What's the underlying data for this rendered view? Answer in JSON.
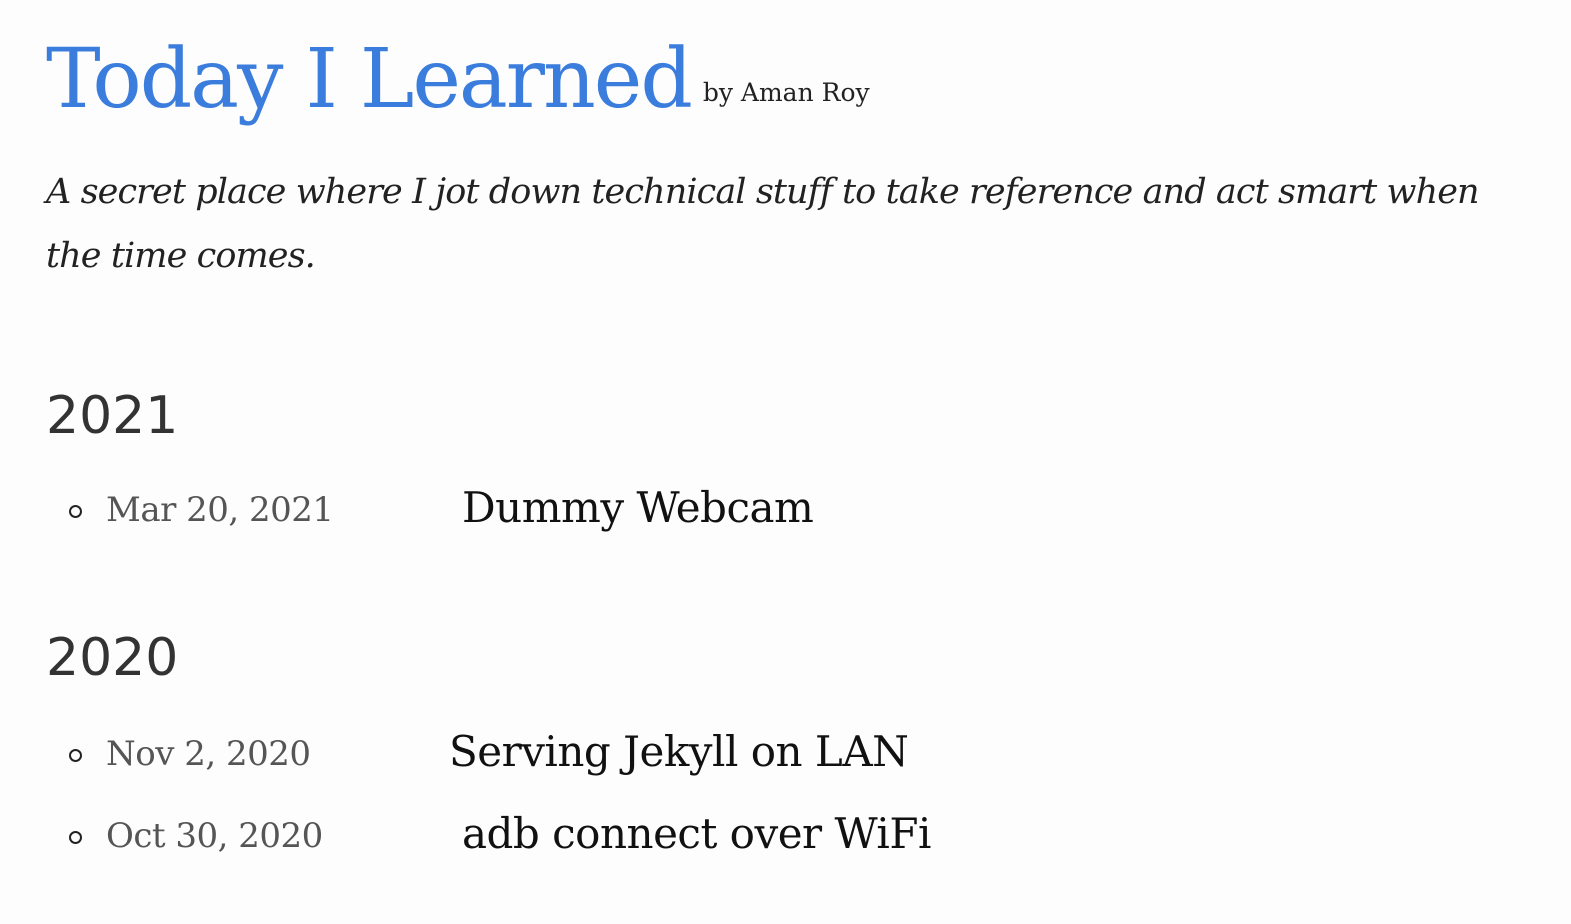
{
  "header": {
    "title": "Today I Learned",
    "byline": "by Aman Roy",
    "tagline": "A secret place where I jot down technical stuff to take reference and act smart when the time comes."
  },
  "archive": [
    {
      "year": "2021",
      "posts": [
        {
          "date": "Mar 20, 2021",
          "title": "Dummy Webcam"
        }
      ]
    },
    {
      "year": "2020",
      "posts": [
        {
          "date": "Nov 2, 2020",
          "title": "Serving Jekyll on LAN"
        },
        {
          "date": "Oct 30, 2020",
          "title": "adb connect over WiFi"
        }
      ]
    }
  ],
  "colors": {
    "title_link": "#3b7ddd",
    "text": "#222222",
    "date": "#555555",
    "year_heading": "#333333"
  },
  "icons": {
    "list_bullet": "hollow-circle"
  }
}
